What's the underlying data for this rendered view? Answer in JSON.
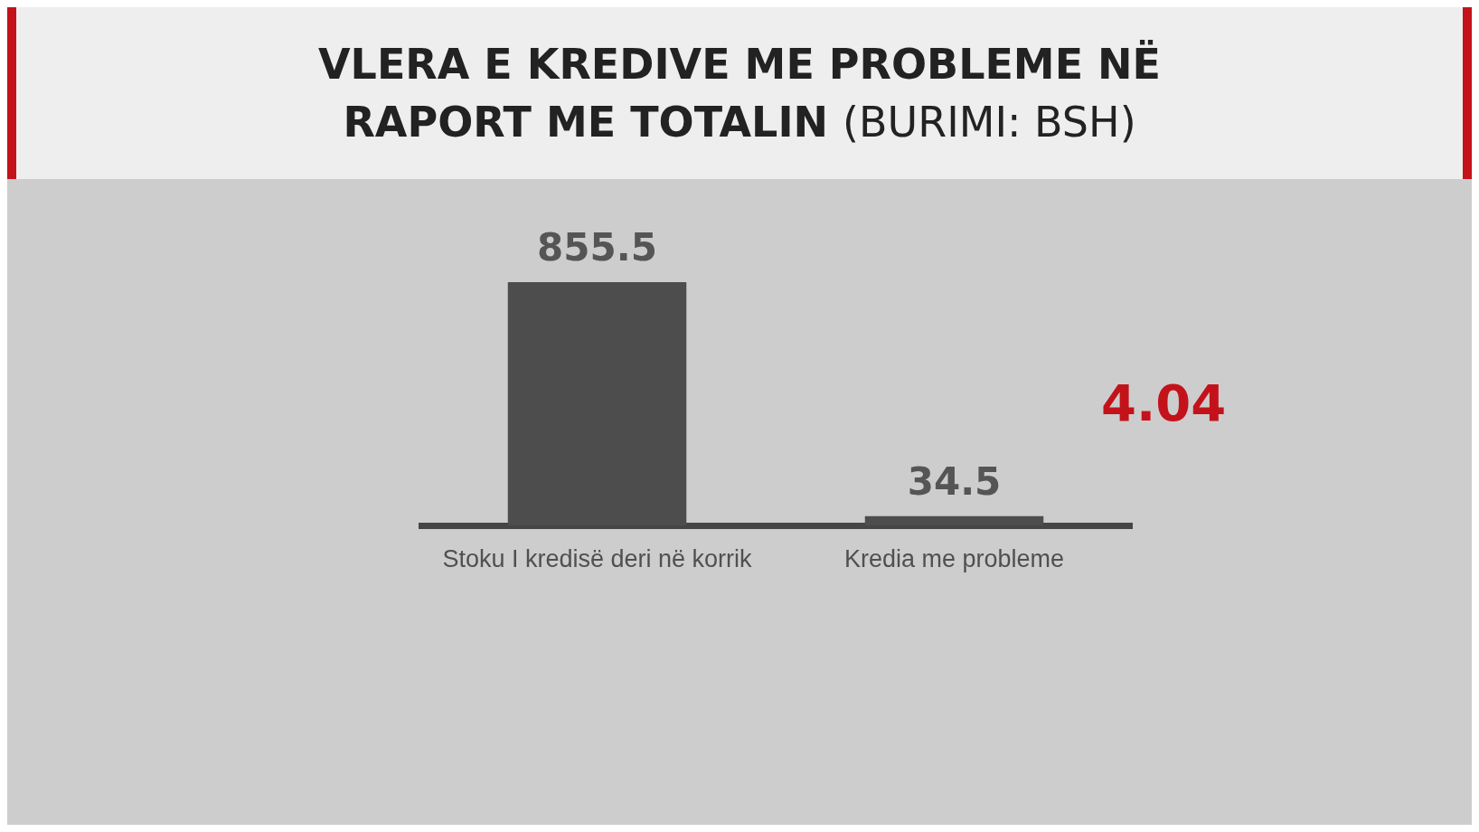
{
  "chart_data": {
    "type": "bar",
    "title": "VLERA E KREDIVE ME PROBLEME NË RAPORT ME TOTALIN",
    "categories": [
      "Stoku I kredisë deri në korrik",
      "Kredia me probleme"
    ],
    "values": [
      855.5,
      34.5
    ],
    "color": "#4d4d4d",
    "data_labels": true,
    "grid": false,
    "legend": false,
    "tick_labels": "x",
    "annotations": [
      "(BURIMI: BSH)",
      "4.04"
    ]
  }
}
